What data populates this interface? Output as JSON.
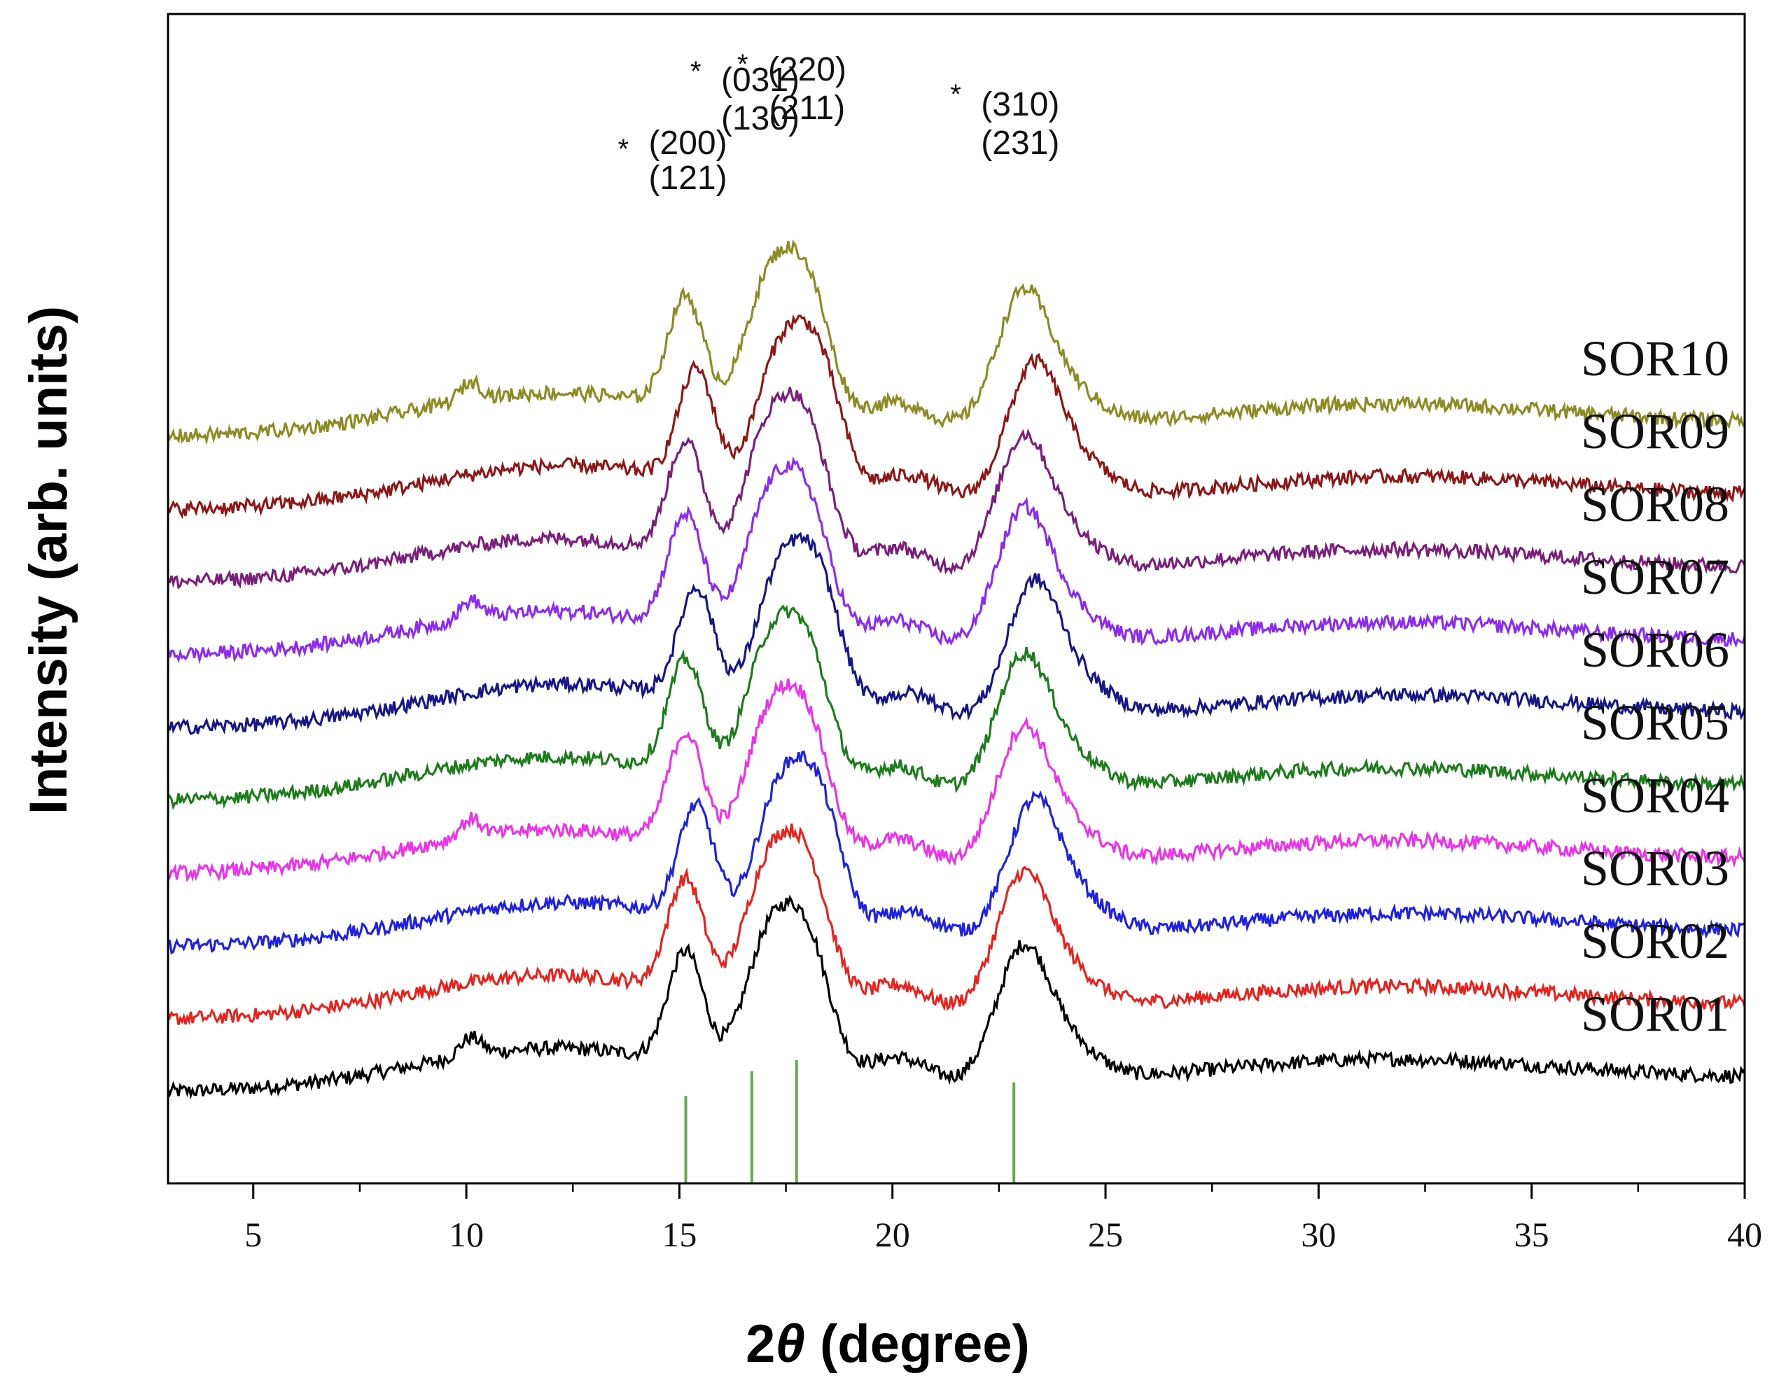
{
  "chart_data": {
    "type": "line",
    "title": "",
    "xlabel": "2θ (degree)",
    "xlabel_parts": {
      "prefix": "2",
      "symbol": "θ",
      "suffix": " (degree)"
    },
    "ylabel": "Intensity (arb. units)",
    "xlim": [
      3,
      40
    ],
    "x_ticks": [
      "5",
      "10",
      "15",
      "20",
      "25",
      "30",
      "35",
      "40"
    ],
    "x_tick_values": [
      5,
      10,
      15,
      20,
      25,
      30,
      35,
      40
    ],
    "y_ticks": [],
    "grid": false,
    "series": [
      {
        "name": "SOR01",
        "color": "#000000",
        "offset": 0
      },
      {
        "name": "SOR02",
        "color": "#e8231e",
        "offset": 1
      },
      {
        "name": "SOR03",
        "color": "#1f22e0",
        "offset": 2
      },
      {
        "name": "SOR04",
        "color": "#ea33ea",
        "offset": 3
      },
      {
        "name": "SOR05",
        "color": "#1d7d1d",
        "offset": 4
      },
      {
        "name": "SOR06",
        "color": "#17178a",
        "offset": 5
      },
      {
        "name": "SOR07",
        "color": "#8b2cf0",
        "offset": 6
      },
      {
        "name": "SOR08",
        "color": "#7a1f7a",
        "offset": 7
      },
      {
        "name": "SOR09",
        "color": "#8e1717",
        "offset": 8
      },
      {
        "name": "SOR10",
        "color": "#8c8c25",
        "offset": 9
      }
    ],
    "reference_lines": {
      "color": "#6aa84f",
      "positions": [
        15.15,
        16.7,
        17.75,
        22.85
      ],
      "relative_heights": [
        0.78,
        1.0,
        1.1,
        0.9
      ]
    },
    "annotations": [
      {
        "star": "*",
        "line1": "(200)",
        "line2": "(121)",
        "x": 15.2
      },
      {
        "star": "*",
        "line1": "(031)",
        "line2": "(130)",
        "x": 16.9
      },
      {
        "star": "*",
        "line1": "(220)",
        "line2": "(211)",
        "x": 18.0
      },
      {
        "star": "*",
        "line1": "(310)",
        "line2": "(231)",
        "x": 23.0
      }
    ]
  }
}
